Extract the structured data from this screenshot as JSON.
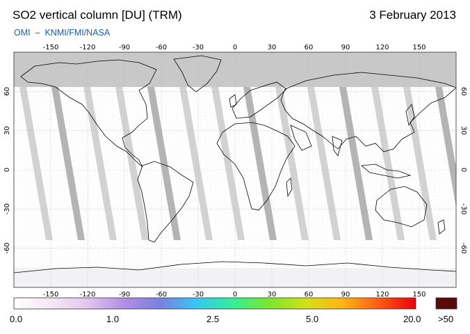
{
  "header": {
    "title": "SO2 vertical column [DU] (TRM)",
    "date": "3 February 2013",
    "credit_left": "OMI",
    "credit_dash": "–",
    "credit_right": "KNMI/FMI/NASA"
  },
  "map": {
    "lon_ticks": [
      "-150",
      "-120",
      "-90",
      "-60",
      "-30",
      "0",
      "30",
      "60",
      "90",
      "120",
      "150"
    ],
    "lat_ticks": [
      "60",
      "30",
      "0",
      "-30",
      "-60"
    ],
    "colors": {
      "no_data": "#c8c8c8",
      "coast": "#000000",
      "grid": "#b0b0b0"
    }
  },
  "colorbar": {
    "labels": [
      "0.0",
      "1.0",
      "2.5",
      "5.0",
      "20.0",
      ">50"
    ],
    "overflow_color": "#5a0a0a",
    "stops": [
      "#ffffff",
      "#f4e8f4",
      "#e4c6ee",
      "#b38fe6",
      "#7a7fe0",
      "#37c7f2",
      "#33ef95",
      "#7de62c",
      "#d4e018",
      "#ffb415",
      "#ff5a14",
      "#e8000d"
    ]
  }
}
